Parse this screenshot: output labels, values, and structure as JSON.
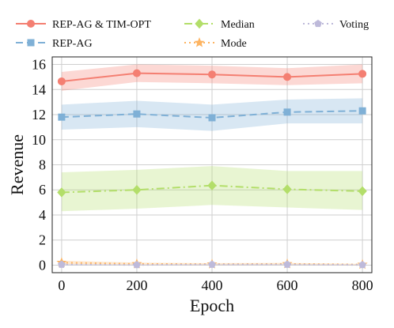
{
  "chart_data": {
    "type": "line",
    "xlabel": "Epoch",
    "ylabel": "Revenue",
    "x": [
      0,
      200,
      400,
      600,
      800
    ],
    "xlim": [
      -25,
      825
    ],
    "ylim": [
      -0.6,
      16.6
    ],
    "xticks": [
      "0",
      "200",
      "400",
      "600",
      "800"
    ],
    "yticks": [
      "0",
      "2",
      "4",
      "6",
      "8",
      "10",
      "12",
      "14",
      "16"
    ],
    "grid": true,
    "legend_placement": "top",
    "series": [
      {
        "name": "REP-AG & TIM-OPT",
        "color": "#f47f72",
        "marker": "circle",
        "dash": "solid",
        "values": [
          14.65,
          15.3,
          15.2,
          15.0,
          15.25
        ],
        "lower": [
          13.9,
          14.6,
          14.5,
          14.35,
          14.5
        ],
        "upper": [
          15.4,
          16.0,
          15.9,
          15.7,
          16.0
        ]
      },
      {
        "name": "REP-AG",
        "color": "#7fb0d6",
        "marker": "square",
        "dash": "dashed",
        "values": [
          11.8,
          12.05,
          11.75,
          12.2,
          12.3
        ],
        "lower": [
          10.8,
          11.0,
          10.7,
          11.3,
          11.3
        ],
        "upper": [
          12.8,
          13.1,
          12.8,
          13.2,
          13.3
        ]
      },
      {
        "name": "Median",
        "color": "#b3de6a",
        "marker": "diamond",
        "dash": "dashdot",
        "values": [
          5.8,
          6.0,
          6.35,
          6.05,
          5.9
        ],
        "lower": [
          4.3,
          4.5,
          4.8,
          4.6,
          4.4
        ],
        "upper": [
          7.4,
          7.6,
          7.9,
          7.5,
          7.5
        ]
      },
      {
        "name": "Mode",
        "color": "#fdb462",
        "marker": "star",
        "dash": "dotted",
        "values": [
          0.2,
          0.1,
          0.08,
          0.1,
          0.05
        ],
        "lower": [
          0.05,
          0.02,
          0.0,
          0.02,
          0.0
        ],
        "upper": [
          0.35,
          0.2,
          0.16,
          0.18,
          0.1
        ]
      },
      {
        "name": "Voting",
        "color": "#bebada",
        "marker": "pentagon",
        "dash": "dotted",
        "values": [
          0.05,
          0.02,
          0.05,
          0.05,
          0.02
        ],
        "lower": [
          0.0,
          0.0,
          0.0,
          0.0,
          0.0
        ],
        "upper": [
          0.1,
          0.05,
          0.1,
          0.1,
          0.05
        ]
      }
    ]
  }
}
